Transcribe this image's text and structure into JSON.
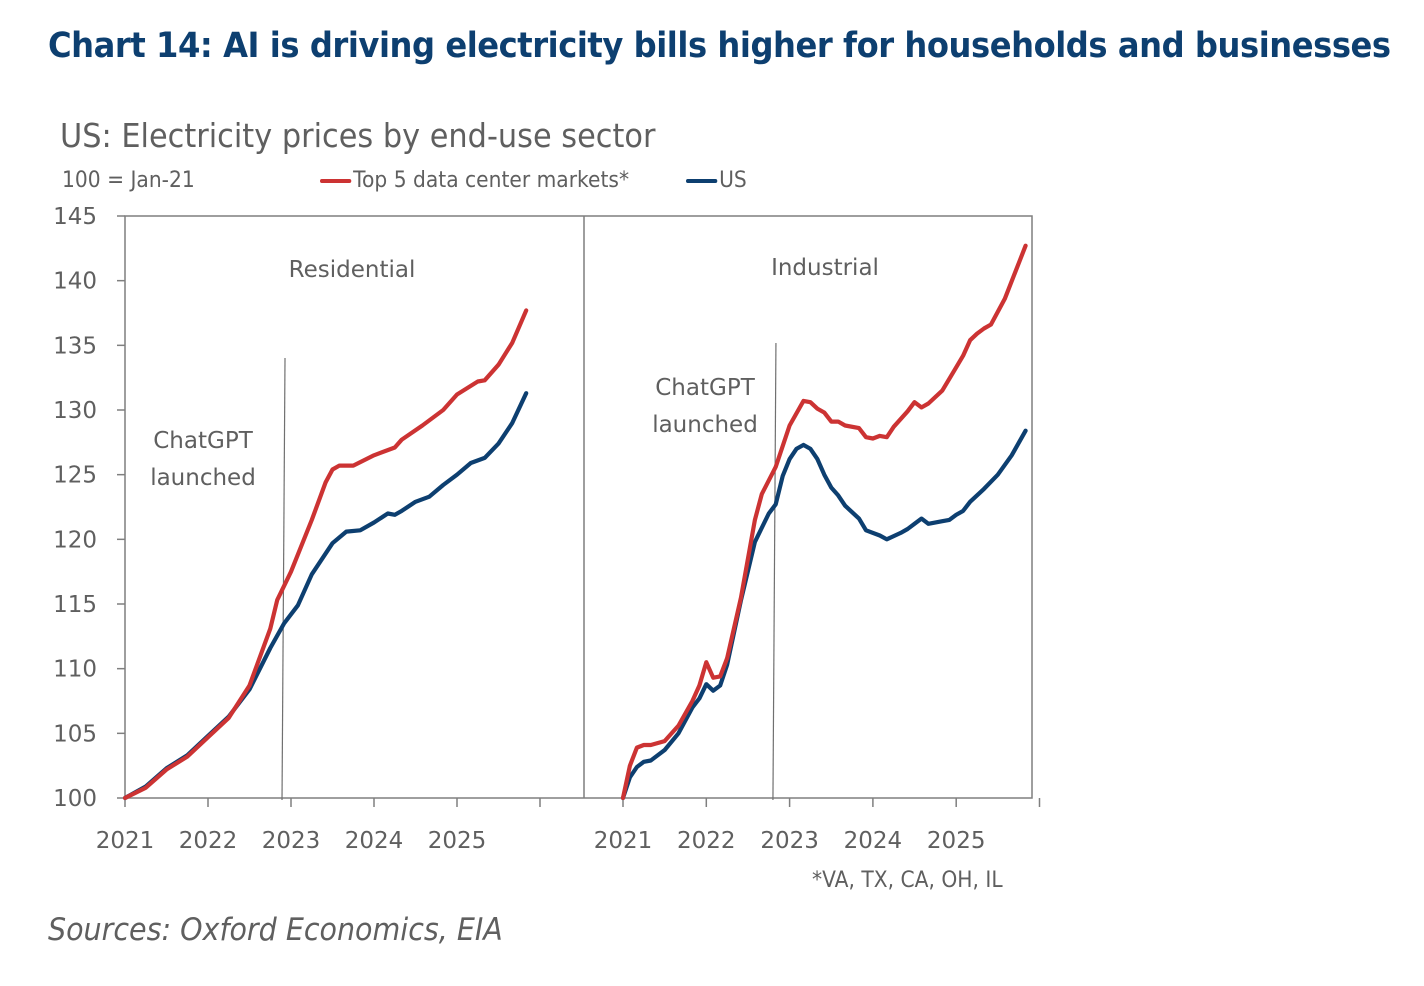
{
  "header": {
    "title": "Chart 14: AI is driving electricity bills higher for households and businesses"
  },
  "chart_data": {
    "type": "line",
    "title": "US: Electricity prices by end-use sector",
    "base_note": "100 = Jan-21",
    "ylabel": "",
    "xlabel": "",
    "ylim": [
      100,
      145
    ],
    "yticks": [
      100,
      105,
      110,
      115,
      120,
      125,
      130,
      135,
      140,
      145
    ],
    "grid": false,
    "legend": {
      "placement": "top",
      "entries": [
        {
          "name": "Top 5 data center markets*",
          "color": "#cc3333"
        },
        {
          "name": "US",
          "color": "#0d3f70"
        }
      ]
    },
    "x_unit": "months since Jan-2021",
    "xlim": [
      0,
      60
    ],
    "xticks": [
      {
        "month": 0,
        "label": "2021"
      },
      {
        "month": 12,
        "label": "2022"
      },
      {
        "month": 24,
        "label": "2023"
      },
      {
        "month": 36,
        "label": "2024"
      },
      {
        "month": 48,
        "label": "2025"
      },
      {
        "month": 60,
        "label": ""
      }
    ],
    "panels": [
      {
        "name": "Residential",
        "annotation": {
          "lines": [
            "ChatGPT",
            "launched"
          ],
          "month": 22.7
        },
        "series": [
          {
            "name": "Top 5 data center markets*",
            "color": "#cc3333",
            "x": [
              0,
              3,
              6,
              9,
              12,
              15,
              18,
              21,
              22,
              24,
              27,
              29,
              30,
              31,
              33,
              36,
              39,
              40,
              43,
              46,
              48,
              51,
              52,
              54,
              56,
              58
            ],
            "y": [
              100,
              100.8,
              102.2,
              103.2,
              104.7,
              106.2,
              108.7,
              113.1,
              115.3,
              117.5,
              121.5,
              124.4,
              125.4,
              125.7,
              125.7,
              126.5,
              127.1,
              127.7,
              128.8,
              130.0,
              131.2,
              132.2,
              132.3,
              133.5,
              135.2,
              137.7
            ]
          },
          {
            "name": "US",
            "color": "#0d3f70",
            "x": [
              0,
              3,
              6,
              9,
              12,
              15,
              18,
              21,
              23,
              25,
              27,
              30,
              32,
              34,
              36,
              38,
              39,
              40,
              42,
              44,
              46,
              48,
              50,
              52,
              54,
              56,
              58
            ],
            "y": [
              100,
              100.9,
              102.3,
              103.3,
              104.8,
              106.3,
              108.4,
              111.6,
              113.5,
              114.9,
              117.3,
              119.7,
              120.6,
              120.7,
              121.3,
              122.0,
              121.9,
              122.2,
              122.9,
              123.3,
              124.2,
              125.0,
              125.9,
              126.3,
              127.4,
              129.0,
              131.3
            ]
          }
        ]
      },
      {
        "name": "Industrial",
        "annotation": {
          "lines": [
            "ChatGPT",
            "launched"
          ],
          "month": 21.6
        },
        "series": [
          {
            "name": "Top 5 data center markets*",
            "color": "#cc3333",
            "x": [
              0,
              1,
              2,
              3,
              4,
              6,
              8,
              10,
              11,
              12,
              13,
              14,
              15,
              17,
              19,
              20,
              22,
              24,
              26,
              27,
              28,
              29,
              30,
              31,
              32,
              34,
              35,
              36,
              37,
              38,
              39,
              41,
              42,
              43,
              44,
              46,
              48,
              49,
              50,
              51,
              52,
              53,
              55,
              58
            ],
            "y": [
              100,
              102.5,
              103.9,
              104.1,
              104.1,
              104.4,
              105.6,
              107.5,
              108.7,
              110.5,
              109.3,
              109.4,
              110.8,
              115.5,
              121.5,
              123.5,
              125.6,
              128.8,
              130.7,
              130.6,
              130.1,
              129.8,
              129.1,
              129.1,
              128.8,
              128.6,
              127.9,
              127.8,
              128.0,
              127.9,
              128.7,
              129.9,
              130.6,
              130.2,
              130.5,
              131.5,
              133.3,
              134.2,
              135.4,
              135.9,
              136.3,
              136.6,
              138.6,
              142.7
            ]
          },
          {
            "name": "US",
            "color": "#0d3f70",
            "x": [
              0,
              1,
              2,
              3,
              4,
              6,
              8,
              10,
              11,
              12,
              13,
              14,
              15,
              17,
              19,
              21,
              22,
              23,
              24,
              25,
              26,
              27,
              28,
              29,
              30,
              31,
              32,
              33,
              34,
              35,
              37,
              38,
              40,
              41,
              42,
              43,
              44,
              46,
              47,
              48,
              49,
              50,
              52,
              54,
              56,
              58
            ],
            "y": [
              100,
              101.6,
              102.4,
              102.8,
              102.9,
              103.7,
              105.0,
              107.0,
              107.7,
              108.8,
              108.3,
              108.7,
              110.3,
              115.3,
              119.8,
              122.0,
              122.7,
              124.9,
              126.2,
              127.0,
              127.3,
              127.0,
              126.2,
              125.0,
              124.0,
              123.4,
              122.6,
              122.1,
              121.6,
              120.7,
              120.3,
              120.0,
              120.5,
              120.8,
              121.2,
              121.6,
              121.2,
              121.4,
              121.5,
              121.9,
              122.2,
              122.9,
              123.9,
              125.0,
              126.5,
              128.4
            ]
          }
        ]
      }
    ],
    "footnote": "*VA, TX, CA, OH, IL"
  },
  "sources": "Sources: Oxford Economics, EIA"
}
